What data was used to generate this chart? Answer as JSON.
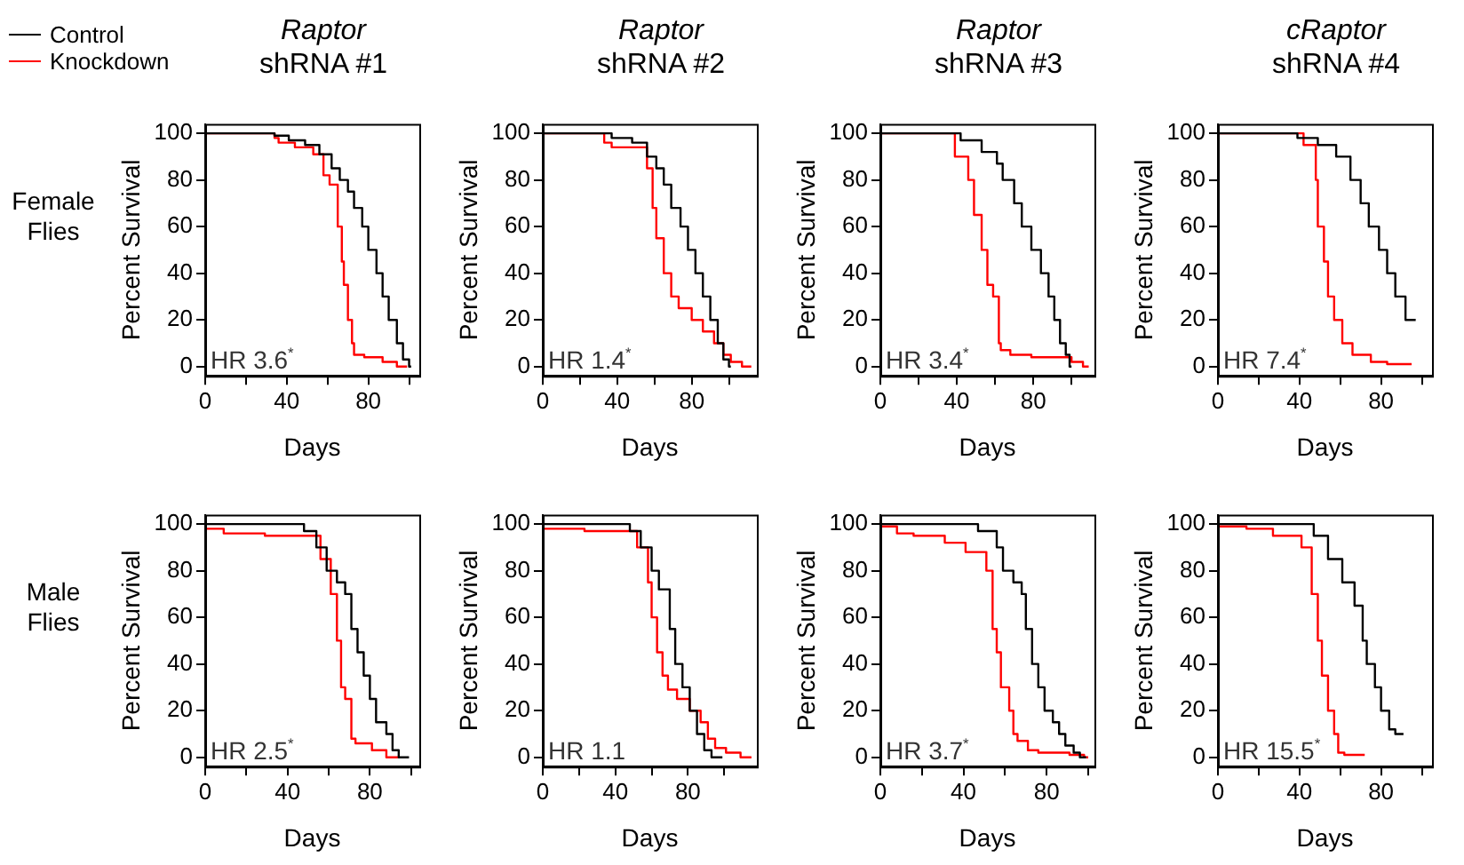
{
  "chart_data": [
    {
      "type": "step",
      "title": "Raptor",
      "subtitle": "shRNA #1",
      "xlabel": "Days",
      "ylabel": "Percent Survival",
      "xlim": [
        0,
        105
      ],
      "ylim": [
        -4,
        104
      ],
      "xticks": [
        0,
        {
          "value": 20,
          "label": null
        },
        40,
        {
          "value": 60,
          "label": null
        },
        80,
        {
          "value": 100,
          "label": null
        }
      ],
      "yticks": [
        0,
        20,
        40,
        60,
        80,
        100
      ],
      "legend": "top left",
      "annotations": [
        "HR 3.6$^{*}$",
        "Female Flies"
      ],
      "series": [
        {
          "name": "Control",
          "color": "#000000",
          "x": [
            0,
            34,
            41,
            49,
            56,
            62,
            66,
            70,
            73,
            77,
            80,
            84,
            87,
            90,
            94,
            97,
            100,
            101
          ],
          "values": [
            100,
            100,
            99,
            97,
            95,
            91,
            85,
            80,
            75,
            68,
            60,
            50,
            40,
            30,
            20,
            10,
            3,
            0
          ]
        },
        {
          "name": "Knockdown",
          "color": "#ff0000",
          "x": [
            0,
            34,
            36,
            44,
            53,
            58,
            61,
            65,
            67,
            68,
            70,
            72,
            73,
            78,
            87,
            94,
            99
          ],
          "values": [
            100,
            100,
            98,
            96,
            94,
            91,
            82,
            78,
            60,
            45,
            35,
            20,
            10,
            5,
            4,
            2,
            0
          ]
        }
      ]
    },
    {
      "type": "step",
      "title": "Raptor",
      "subtitle": "shRNA #2",
      "xlabel": "Days",
      "ylabel": "Percent Survival",
      "xlim": [
        0,
        115
      ],
      "ylim": [
        -4,
        104
      ],
      "xticks": [
        0,
        {
          "value": 20,
          "label": null
        },
        40,
        {
          "value": 60,
          "label": null
        },
        80,
        {
          "value": 100,
          "label": null
        }
      ],
      "yticks": [
        0,
        20,
        40,
        60,
        80,
        100
      ],
      "annotations": [
        "HR 1.4$^{*}$"
      ],
      "series": [
        {
          "color": "#000000",
          "x": [
            0,
            37,
            48,
            56,
            61,
            65,
            69,
            74,
            78,
            82,
            86,
            90,
            94,
            97,
            100,
            101
          ],
          "values": [
            100,
            100,
            98,
            96,
            90,
            85,
            78,
            68,
            60,
            50,
            40,
            30,
            20,
            10,
            3,
            0
          ]
        },
        {
          "color": "#ff0000",
          "x": [
            0,
            33,
            37,
            56,
            59,
            61,
            65,
            69,
            73,
            80,
            86,
            92,
            97,
            101,
            107,
            112
          ],
          "values": [
            100,
            100,
            96,
            94,
            85,
            68,
            55,
            40,
            30,
            25,
            20,
            15,
            10,
            5,
            2,
            0
          ]
        }
      ]
    },
    {
      "type": "step",
      "title": "Raptor",
      "subtitle": "shRNA #3",
      "xlabel": "Days",
      "ylabel": "Percent Survival",
      "xlim": [
        0,
        112
      ],
      "ylim": [
        -4,
        104
      ],
      "xticks": [
        0,
        {
          "value": 20,
          "label": null
        },
        40,
        {
          "value": 60,
          "label": null
        },
        80,
        {
          "value": 100,
          "label": null
        }
      ],
      "yticks": [
        0,
        20,
        40,
        60,
        80,
        100
      ],
      "annotations": [
        "HR 3.4$^{*}$"
      ],
      "series": [
        {
          "color": "#000000",
          "x": [
            0,
            42,
            53,
            61,
            64,
            70,
            74,
            79,
            84,
            88,
            91,
            94,
            97,
            99,
            100
          ],
          "values": [
            100,
            100,
            97,
            92,
            87,
            80,
            70,
            60,
            50,
            40,
            30,
            20,
            10,
            5,
            0
          ]
        },
        {
          "color": "#ff0000",
          "x": [
            0,
            39,
            46,
            49,
            53,
            56,
            59,
            62,
            63,
            68,
            79,
            100,
            106,
            109
          ],
          "values": [
            100,
            100,
            90,
            80,
            65,
            50,
            35,
            30,
            10,
            7,
            5,
            4,
            2,
            0
          ]
        }
      ]
    },
    {
      "type": "step",
      "title": "cRaptor",
      "subtitle": "shRNA #4",
      "xlabel": "Days",
      "ylabel": "Percent Survival",
      "xlim": [
        0,
        105
      ],
      "ylim": [
        -4,
        104
      ],
      "xticks": [
        0,
        {
          "value": 20,
          "label": null
        },
        40,
        {
          "value": 60,
          "label": null
        },
        80,
        {
          "value": 100,
          "label": null
        }
      ],
      "yticks": [
        0,
        20,
        40,
        60,
        80,
        100
      ],
      "annotations": [
        "HR 7.4$^{*}$"
      ],
      "series": [
        {
          "color": "#000000",
          "x": [
            0,
            39,
            49,
            58,
            65,
            70,
            74,
            79,
            83,
            87,
            92,
            97
          ],
          "values": [
            100,
            100,
            98,
            95,
            90,
            80,
            70,
            60,
            50,
            40,
            30,
            20
          ]
        },
        {
          "color": "#ff0000",
          "x": [
            0,
            42,
            48,
            49,
            52,
            54,
            57,
            61,
            66,
            75,
            83,
            95
          ],
          "values": [
            100,
            100,
            95,
            80,
            60,
            45,
            30,
            20,
            10,
            5,
            2,
            1
          ]
        }
      ]
    },
    {
      "type": "step",
      "xlabel": "Days",
      "ylabel": "Percent Survival",
      "xlim": [
        0,
        104
      ],
      "ylim": [
        -4,
        104
      ],
      "xticks": [
        0,
        {
          "value": 20,
          "label": null
        },
        40,
        {
          "value": 60,
          "label": null
        },
        80,
        {
          "value": 100,
          "label": null
        }
      ],
      "yticks": [
        0,
        20,
        40,
        60,
        80,
        100
      ],
      "annotations": [
        "HR 2.5$^{*}$",
        "Male Flies"
      ],
      "series": [
        {
          "color": "#000000",
          "x": [
            0,
            48,
            54,
            59,
            64,
            68,
            71,
            74,
            77,
            80,
            83,
            88,
            91,
            94,
            99
          ],
          "values": [
            100,
            100,
            97,
            90,
            80,
            75,
            70,
            55,
            45,
            35,
            25,
            15,
            10,
            3,
            0
          ]
        },
        {
          "color": "#ff0000",
          "x": [
            0,
            9,
            29,
            56,
            61,
            64,
            66,
            68,
            71,
            73,
            81,
            88,
            94
          ],
          "values": [
            100,
            98,
            96,
            95,
            85,
            70,
            50,
            30,
            25,
            8,
            6,
            3,
            0
          ]
        }
      ]
    },
    {
      "type": "step",
      "xlabel": "Days",
      "ylabel": "Percent Survival",
      "xlim": [
        0,
        118
      ],
      "ylim": [
        -4,
        104
      ],
      "xticks": [
        0,
        {
          "value": 20,
          "label": null
        },
        40,
        {
          "value": 60,
          "label": null
        },
        80,
        {
          "value": 100,
          "label": null
        }
      ],
      "yticks": [
        0,
        20,
        40,
        60,
        80,
        100
      ],
      "annotations": [
        "HR 1.1"
      ],
      "series": [
        {
          "color": "#000000",
          "x": [
            0,
            48,
            54,
            60,
            64,
            70,
            73,
            77,
            81,
            85,
            89,
            93,
            99
          ],
          "values": [
            100,
            100,
            97,
            90,
            80,
            72,
            55,
            40,
            30,
            20,
            10,
            3,
            0
          ]
        },
        {
          "color": "#ff0000",
          "x": [
            0,
            23,
            52,
            58,
            60,
            63,
            66,
            69,
            74,
            81,
            87,
            91,
            95,
            101,
            109,
            115
          ],
          "values": [
            100,
            98,
            97,
            90,
            75,
            60,
            45,
            35,
            29,
            25,
            20,
            15,
            8,
            4,
            2,
            0
          ]
        }
      ]
    },
    {
      "type": "step",
      "xlabel": "Days",
      "ylabel": "Percent Survival",
      "xlim": [
        0,
        103
      ],
      "ylim": [
        -4,
        104
      ],
      "xticks": [
        0,
        {
          "value": 20,
          "label": null
        },
        40,
        {
          "value": 60,
          "label": null
        },
        80,
        {
          "value": 100,
          "label": null
        }
      ],
      "yticks": [
        0,
        20,
        40,
        60,
        80,
        100
      ],
      "annotations": [
        "HR 3.7$^{*}$"
      ],
      "series": [
        {
          "color": "#000000",
          "x": [
            0,
            47,
            56,
            59,
            64,
            68,
            70,
            73,
            76,
            79,
            83,
            86,
            89,
            93,
            96,
            99
          ],
          "values": [
            100,
            100,
            97,
            90,
            80,
            75,
            70,
            55,
            40,
            30,
            20,
            15,
            10,
            5,
            2,
            0
          ]
        },
        {
          "color": "#ff0000",
          "x": [
            0,
            8,
            16,
            31,
            41,
            51,
            54,
            56,
            58,
            62,
            64,
            66,
            71,
            76,
            91,
            98,
            100
          ],
          "values": [
            100,
            99,
            96,
            95,
            92,
            88,
            80,
            55,
            45,
            30,
            20,
            10,
            7,
            3,
            2,
            1,
            0
          ]
        }
      ]
    },
    {
      "type": "step",
      "xlabel": "Days",
      "ylabel": "Percent Survival",
      "xlim": [
        0,
        105
      ],
      "ylim": [
        -4,
        104
      ],
      "xticks": [
        0,
        {
          "value": 20,
          "label": null
        },
        40,
        {
          "value": 60,
          "label": null
        },
        80,
        {
          "value": 100,
          "label": null
        }
      ],
      "yticks": [
        0,
        20,
        40,
        60,
        80,
        100
      ],
      "annotations": [
        "HR 15.5$^{*}$"
      ],
      "series": [
        {
          "color": "#000000",
          "x": [
            0,
            47,
            54,
            61,
            67,
            71,
            73,
            77,
            80,
            84,
            87,
            91
          ],
          "values": [
            100,
            100,
            95,
            85,
            75,
            65,
            50,
            40,
            30,
            20,
            12,
            10
          ]
        },
        {
          "color": "#ff0000",
          "x": [
            0,
            14,
            27,
            41,
            46,
            49,
            51,
            54,
            57,
            59,
            62,
            72
          ],
          "values": [
            100,
            99,
            98,
            95,
            90,
            70,
            50,
            35,
            20,
            10,
            2,
            1
          ]
        }
      ]
    }
  ]
}
